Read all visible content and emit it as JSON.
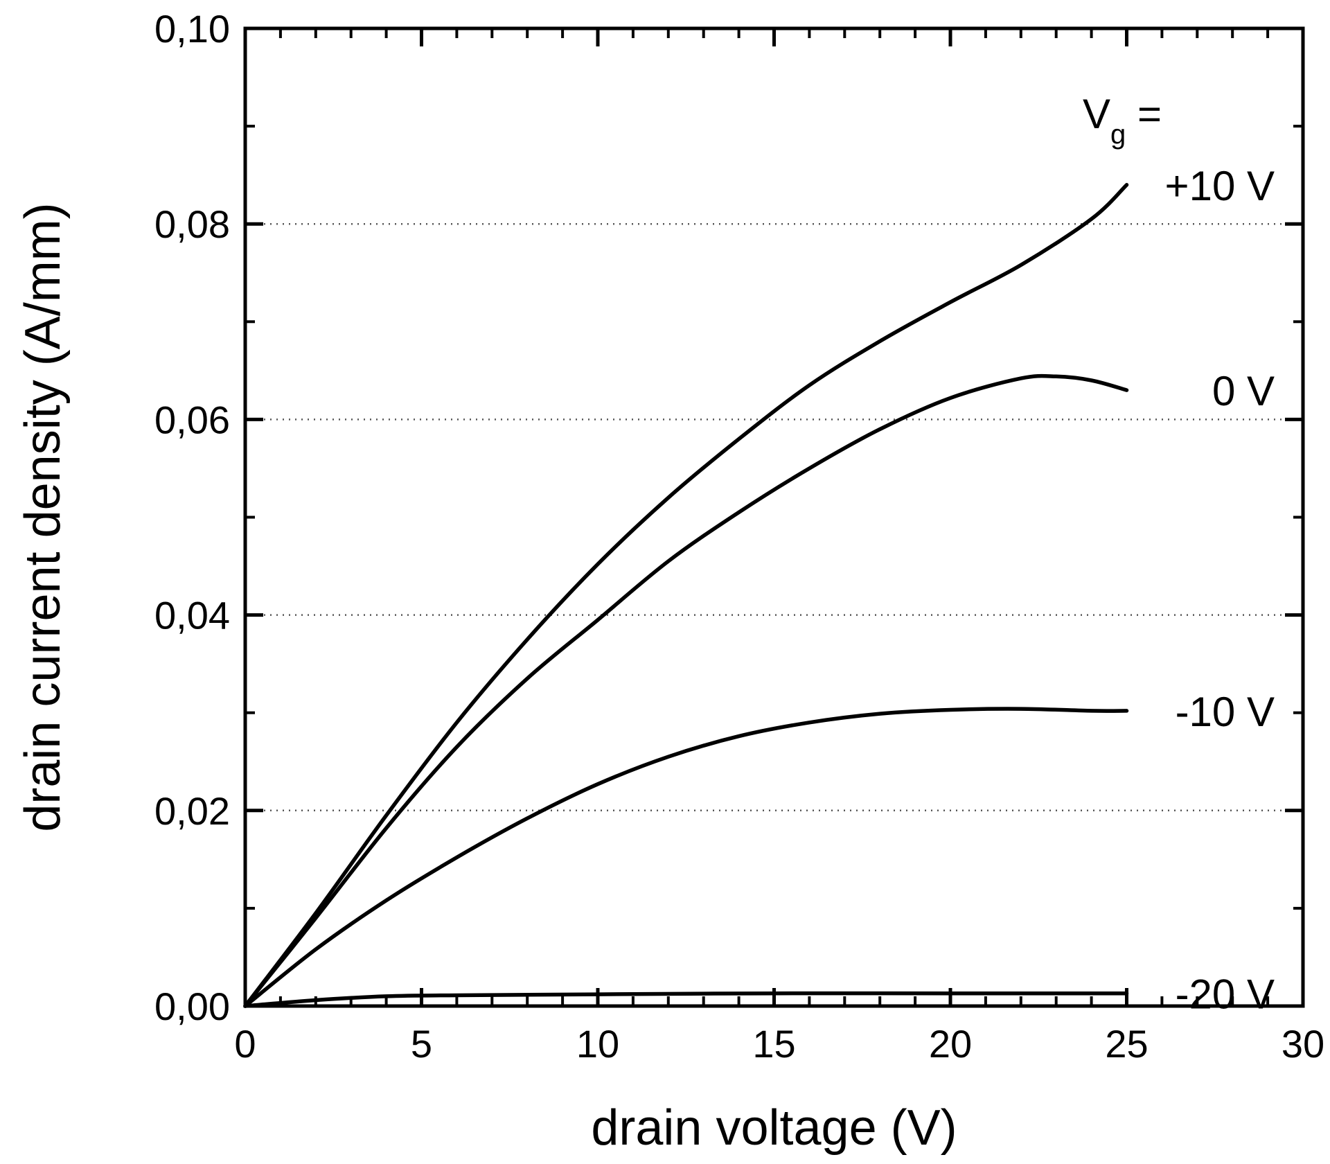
{
  "chart_data": {
    "type": "line",
    "xlabel": "drain voltage (V)",
    "ylabel": "drain current density (A/mm)",
    "xlim": [
      0,
      30
    ],
    "ylim": [
      0,
      0.1
    ],
    "x_ticks": [
      "0",
      "5",
      "10",
      "15",
      "20",
      "25",
      "30"
    ],
    "y_ticks": [
      "0,00",
      "0,02",
      "0,04",
      "0,06",
      "0,08",
      "0,10"
    ],
    "grid": "horizontal dotted",
    "legend_title": "V",
    "legend_title_subscript": "g",
    "legend_title_suffix": " =",
    "line_color": "#000000",
    "series": [
      {
        "name": "+10 V",
        "points": [
          [
            0,
            0
          ],
          [
            2,
            0.0095
          ],
          [
            4,
            0.0195
          ],
          [
            6,
            0.029
          ],
          [
            8,
            0.0375
          ],
          [
            10,
            0.0452
          ],
          [
            12,
            0.052
          ],
          [
            14,
            0.058
          ],
          [
            16,
            0.0635
          ],
          [
            18,
            0.068
          ],
          [
            20,
            0.072
          ],
          [
            22,
            0.0758
          ],
          [
            24,
            0.0805
          ],
          [
            25,
            0.084
          ]
        ]
      },
      {
        "name": "0 V",
        "points": [
          [
            0,
            0
          ],
          [
            2,
            0.009
          ],
          [
            4,
            0.0182
          ],
          [
            6,
            0.0265
          ],
          [
            8,
            0.0335
          ],
          [
            10,
            0.0395
          ],
          [
            12,
            0.0455
          ],
          [
            14,
            0.0505
          ],
          [
            16,
            0.055
          ],
          [
            18,
            0.059
          ],
          [
            20,
            0.0622
          ],
          [
            22,
            0.0642
          ],
          [
            23,
            0.0644
          ],
          [
            24,
            0.064
          ],
          [
            25,
            0.063
          ]
        ]
      },
      {
        "name": "-10 V",
        "points": [
          [
            0,
            0
          ],
          [
            2,
            0.0058
          ],
          [
            4,
            0.0108
          ],
          [
            6,
            0.0152
          ],
          [
            8,
            0.0192
          ],
          [
            10,
            0.0227
          ],
          [
            12,
            0.0255
          ],
          [
            14,
            0.0276
          ],
          [
            16,
            0.029
          ],
          [
            18,
            0.0299
          ],
          [
            20,
            0.0303
          ],
          [
            22,
            0.0304
          ],
          [
            24,
            0.0302
          ],
          [
            25,
            0.0302
          ]
        ]
      },
      {
        "name": "-20 V",
        "points": [
          [
            0,
            0
          ],
          [
            2,
            0.0006
          ],
          [
            4,
            0.001
          ],
          [
            6,
            0.0011
          ],
          [
            10,
            0.0012
          ],
          [
            15,
            0.0013
          ],
          [
            20,
            0.0013
          ],
          [
            25,
            0.0013
          ]
        ]
      }
    ]
  }
}
